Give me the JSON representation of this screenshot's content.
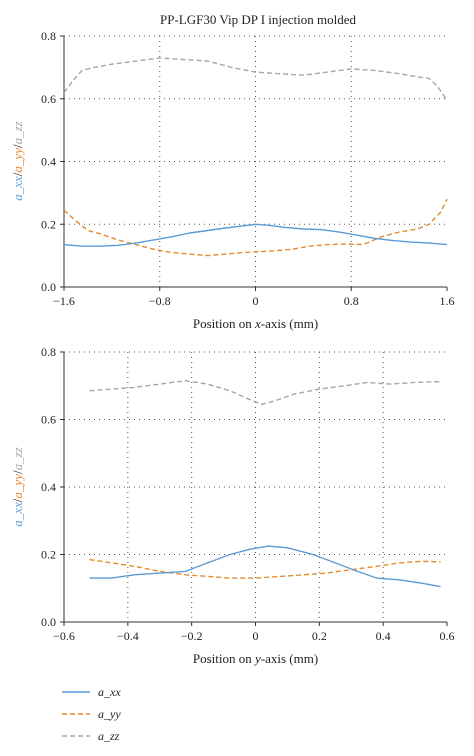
{
  "colors": {
    "a_xx": "#5b9bd5",
    "a_yy": "#e5892f",
    "a_zz": "#a6a6a6",
    "axis": "#333333",
    "grid": "#555555"
  },
  "legend": {
    "position": "bottom-left",
    "entries": [
      {
        "key": "a_xx",
        "label": "a_xx"
      },
      {
        "key": "a_yy",
        "label": "a_yy"
      },
      {
        "key": "a_zz",
        "label": "a_zz"
      }
    ]
  },
  "chart_data": [
    {
      "type": "line",
      "title": "PP-LGF30 Vip DP I injection molded",
      "xlabel": {
        "pre": "Position on ",
        "var": "x",
        "post": "-axis (mm)"
      },
      "ylabel_parts": [
        "a_xx",
        "/",
        "a_yy",
        "/",
        "a_zz"
      ],
      "xlim": [
        -1.6,
        1.6
      ],
      "ylim": [
        0.0,
        0.8
      ],
      "xticks": [
        -1.6,
        -0.8,
        0,
        0.8,
        1.6
      ],
      "xtick_labels": [
        "−1.6",
        "−0.8",
        "0",
        "0.8",
        "1.6"
      ],
      "yticks": [
        0.0,
        0.2,
        0.4,
        0.6,
        0.8
      ],
      "ytick_labels": [
        "0.0",
        "0.2",
        "0.4",
        "0.6",
        "0.8"
      ],
      "grid": "dotted",
      "series": [
        {
          "name": "a_xx",
          "style": "solid",
          "x": [
            -1.6,
            -1.45,
            -1.3,
            -1.15,
            -1.0,
            -0.85,
            -0.7,
            -0.55,
            -0.4,
            -0.25,
            -0.1,
            0.0,
            0.1,
            0.25,
            0.4,
            0.55,
            0.7,
            0.85,
            1.0,
            1.15,
            1.3,
            1.45,
            1.6
          ],
          "y": [
            0.135,
            0.13,
            0.13,
            0.133,
            0.14,
            0.15,
            0.16,
            0.172,
            0.18,
            0.188,
            0.195,
            0.2,
            0.197,
            0.19,
            0.185,
            0.183,
            0.175,
            0.165,
            0.155,
            0.148,
            0.143,
            0.14,
            0.135
          ]
        },
        {
          "name": "a_yy",
          "style": "dashed",
          "x": [
            -1.6,
            -1.5,
            -1.4,
            -1.3,
            -1.15,
            -1.0,
            -0.85,
            -0.7,
            -0.55,
            -0.4,
            -0.25,
            -0.1,
            0.0,
            0.15,
            0.3,
            0.45,
            0.6,
            0.75,
            0.9,
            1.05,
            1.2,
            1.35,
            1.45,
            1.55,
            1.6
          ],
          "y": [
            0.245,
            0.21,
            0.18,
            0.17,
            0.15,
            0.135,
            0.12,
            0.11,
            0.105,
            0.1,
            0.105,
            0.11,
            0.112,
            0.115,
            0.12,
            0.13,
            0.135,
            0.137,
            0.135,
            0.16,
            0.175,
            0.185,
            0.2,
            0.24,
            0.28
          ]
        },
        {
          "name": "a_zz",
          "style": "dashed",
          "x": [
            -1.6,
            -1.52,
            -1.45,
            -1.35,
            -1.2,
            -1.0,
            -0.8,
            -0.6,
            -0.4,
            -0.2,
            0.0,
            0.2,
            0.4,
            0.6,
            0.8,
            1.0,
            1.2,
            1.35,
            1.45,
            1.52,
            1.6
          ],
          "y": [
            0.62,
            0.66,
            0.69,
            0.7,
            0.71,
            0.72,
            0.73,
            0.725,
            0.72,
            0.7,
            0.685,
            0.68,
            0.675,
            0.685,
            0.695,
            0.69,
            0.68,
            0.67,
            0.665,
            0.64,
            0.595
          ]
        }
      ]
    },
    {
      "type": "line",
      "title": "",
      "xlabel": {
        "pre": "Position on ",
        "var": "y",
        "post": "-axis (mm)"
      },
      "ylabel_parts": [
        "a_xx",
        "/",
        "a_yy",
        "/",
        "a_zz"
      ],
      "xlim": [
        -0.6,
        0.6
      ],
      "ylim": [
        0.0,
        0.8
      ],
      "xticks": [
        -0.6,
        -0.4,
        -0.2,
        0.0,
        0.2,
        0.4,
        0.6
      ],
      "xtick_labels": [
        "−0.6",
        "−0.4",
        "−0.2",
        "0",
        "0.2",
        "0.4",
        "0.6"
      ],
      "yticks": [
        0.0,
        0.2,
        0.4,
        0.6,
        0.8
      ],
      "ytick_labels": [
        "0.0",
        "0.2",
        "0.4",
        "0.6",
        "0.8"
      ],
      "grid": "dotted",
      "series": [
        {
          "name": "a_xx",
          "style": "solid",
          "x": [
            -0.52,
            -0.45,
            -0.38,
            -0.3,
            -0.22,
            -0.15,
            -0.08,
            -0.02,
            0.04,
            0.1,
            0.18,
            0.25,
            0.32,
            0.38,
            0.45,
            0.52,
            0.58
          ],
          "y": [
            0.13,
            0.13,
            0.14,
            0.145,
            0.15,
            0.175,
            0.2,
            0.215,
            0.225,
            0.22,
            0.2,
            0.175,
            0.15,
            0.13,
            0.125,
            0.115,
            0.105
          ]
        },
        {
          "name": "a_yy",
          "style": "dashed",
          "x": [
            -0.52,
            -0.45,
            -0.38,
            -0.3,
            -0.22,
            -0.15,
            -0.08,
            0.0,
            0.08,
            0.15,
            0.22,
            0.3,
            0.38,
            0.45,
            0.52,
            0.58
          ],
          "y": [
            0.185,
            0.175,
            0.165,
            0.15,
            0.14,
            0.135,
            0.13,
            0.13,
            0.135,
            0.14,
            0.145,
            0.155,
            0.165,
            0.175,
            0.18,
            0.178
          ]
        },
        {
          "name": "a_zz",
          "style": "dashed",
          "x": [
            -0.52,
            -0.45,
            -0.38,
            -0.3,
            -0.22,
            -0.15,
            -0.08,
            -0.02,
            0.02,
            0.06,
            0.12,
            0.2,
            0.28,
            0.35,
            0.42,
            0.5,
            0.58
          ],
          "y": [
            0.685,
            0.69,
            0.695,
            0.705,
            0.715,
            0.705,
            0.685,
            0.66,
            0.645,
            0.655,
            0.675,
            0.69,
            0.7,
            0.71,
            0.705,
            0.71,
            0.712
          ]
        }
      ]
    }
  ]
}
